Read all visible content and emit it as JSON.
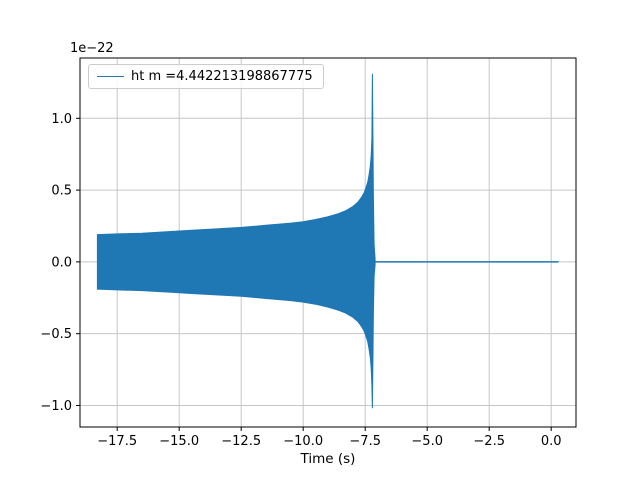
{
  "figure": {
    "background": "#ffffff",
    "accent_color": "#1f77b4",
    "grid_color": "#c6c6c6",
    "spine_color": "#000000"
  },
  "chart_data": {
    "type": "line",
    "title": "",
    "xlabel": "Time (s)",
    "ylabel": "",
    "y_offset_label": "1e−22",
    "xlim": [
      -19.0,
      1.0
    ],
    "ylim": [
      -1.15,
      1.42
    ],
    "xticks": [
      -17.5,
      -15.0,
      -12.5,
      -10.0,
      -7.5,
      -5.0,
      -2.5,
      0.0
    ],
    "xtick_labels": [
      "−17.5",
      "−15.0",
      "−12.5",
      "−10.0",
      "−7.5",
      "−5.0",
      "−2.5",
      "0.0"
    ],
    "yticks": [
      -1.0,
      -0.5,
      0.0,
      0.5,
      1.0
    ],
    "ytick_labels": [
      "−1.0",
      "−0.5",
      "0.0",
      "0.5",
      "1.0"
    ],
    "grid": true,
    "legend": {
      "position": "upper-left",
      "entries": [
        "ht m =4.442213198867775"
      ]
    },
    "series": [
      {
        "name": "ht m =4.442213198867775",
        "color": "#1f77b4",
        "description": "dense oscillatory gravitational-wave chirp drawn as a filled amplitude envelope (units 1e-22); amplitude grows from ~0.19 at t=-18.3 s to a merger spike of +1.31/−1.02 at t≈-7.2 s, then flat at 0 until t≈0.3 s",
        "envelope": {
          "time": [
            -18.3,
            -17.5,
            -16.5,
            -15.5,
            -14.5,
            -13.5,
            -12.5,
            -11.5,
            -10.5,
            -10.0,
            -9.5,
            -9.0,
            -8.6,
            -8.3,
            -8.0,
            -7.8,
            -7.65,
            -7.55,
            -7.47,
            -7.4,
            -7.35,
            -7.3,
            -7.26,
            -7.23,
            -7.21,
            -7.19,
            -7.17,
            -7.14,
            -7.1
          ],
          "amp_upper": [
            0.19,
            0.195,
            0.2,
            0.21,
            0.22,
            0.23,
            0.24,
            0.255,
            0.27,
            0.28,
            0.295,
            0.315,
            0.335,
            0.355,
            0.385,
            0.415,
            0.45,
            0.48,
            0.515,
            0.555,
            0.6,
            0.66,
            0.74,
            0.86,
            1.31,
            0.9,
            0.45,
            0.12,
            0.02
          ],
          "amp_lower": [
            -0.19,
            -0.195,
            -0.2,
            -0.21,
            -0.22,
            -0.23,
            -0.24,
            -0.255,
            -0.27,
            -0.28,
            -0.295,
            -0.315,
            -0.335,
            -0.355,
            -0.385,
            -0.415,
            -0.45,
            -0.48,
            -0.515,
            -0.555,
            -0.6,
            -0.66,
            -0.74,
            -0.86,
            -1.02,
            -0.7,
            -0.35,
            -0.1,
            -0.02
          ]
        },
        "post_merger_flat": {
          "t_start": -7.1,
          "t_end": 0.3,
          "value": 0.0
        }
      }
    ]
  }
}
